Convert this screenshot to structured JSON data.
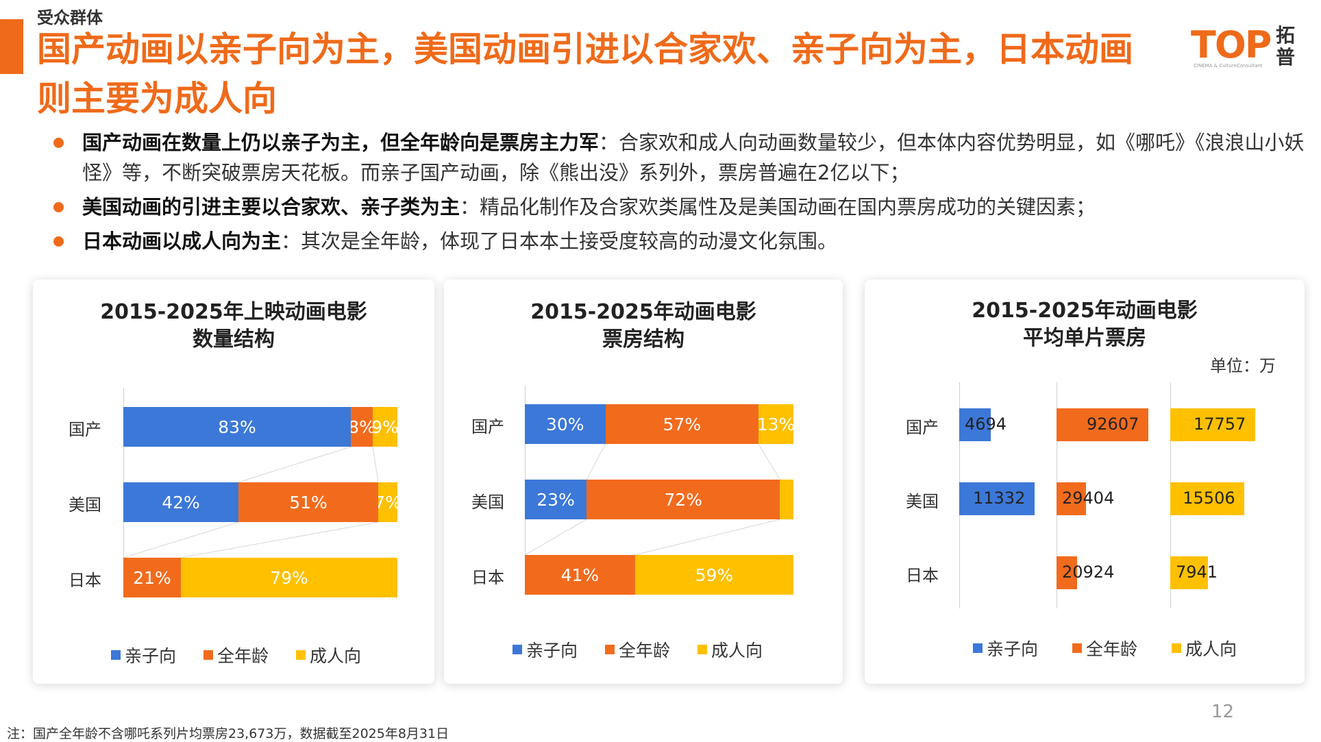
{
  "header": {
    "section_label": "受众群体",
    "title": "国产动画以亲子向为主，美国动画引进以合家欢、亲子向为主，日本动画则主要为成人向",
    "logo_text": "TOP",
    "logo_cn": "拓普",
    "logo_sub": "CINEMA & CultureConsultant"
  },
  "bullets": [
    {
      "strong": "国产动画在数量上仍以亲子为主，但全年龄向是票房主力军",
      "text": "：合家欢和成人向动画数量较少，但本体内容优势明显，如《哪吒》《浪浪山小妖怪》等，不断突破票房天花板。而亲子国产动画，除《熊出没》系列外，票房普遍在2亿以下；"
    },
    {
      "strong": "美国动画的引进主要以合家欢、亲子类为主",
      "text": "：精品化制作及合家欢类属性及是美国动画在国内票房成功的关键因素；"
    },
    {
      "strong": "日本动画以成人向为主",
      "text": "：其次是全年龄，体现了日本本土接受度较高的动漫文化氛围。"
    }
  ],
  "colors": {
    "accent": "#ef6a1a",
    "kids": "#3c78d8",
    "all_age": "#f26b1d",
    "adult": "#ffc000"
  },
  "legend": {
    "kids": "亲子向",
    "all_age": "全年龄",
    "adult": "成人向"
  },
  "chart_data": [
    {
      "type": "bar",
      "stacked": "percent",
      "title": "2015-2025年上映动画电影\n数量结构",
      "categories": [
        "国产",
        "美国",
        "日本"
      ],
      "series": [
        {
          "name": "亲子向",
          "values": [
            83,
            42,
            0
          ],
          "labels": [
            "83%",
            "42%",
            ""
          ]
        },
        {
          "name": "全年龄",
          "values": [
            8,
            51,
            21
          ],
          "labels": [
            "8%",
            "51%",
            "21%"
          ]
        },
        {
          "name": "成人向",
          "values": [
            9,
            7,
            79
          ],
          "labels": [
            "9%",
            "7%",
            "79%"
          ]
        }
      ],
      "legend_position": "bottom"
    },
    {
      "type": "bar",
      "stacked": "percent",
      "title": "2015-2025年动画电影\n票房结构",
      "categories": [
        "国产",
        "美国",
        "日本"
      ],
      "series": [
        {
          "name": "亲子向",
          "values": [
            30,
            23,
            0
          ],
          "labels": [
            "30%",
            "23%",
            ""
          ]
        },
        {
          "name": "全年龄",
          "values": [
            57,
            72,
            41
          ],
          "labels": [
            "57%",
            "72%",
            "41%"
          ]
        },
        {
          "name": "成人向",
          "values": [
            13,
            5,
            59
          ],
          "labels": [
            "13%",
            "",
            "59%"
          ]
        }
      ],
      "legend_position": "bottom"
    },
    {
      "type": "bar",
      "title": "2015-2025年动画电影\n平均单片票房",
      "unit_label": "单位：万",
      "categories": [
        "国产",
        "美国",
        "日本"
      ],
      "series": [
        {
          "name": "亲子向",
          "values": [
            4694,
            11332,
            null
          ],
          "labels": [
            "4694",
            "11332",
            ""
          ]
        },
        {
          "name": "全年龄",
          "values": [
            92607,
            29404,
            20924
          ],
          "labels": [
            "92607",
            "29404",
            "20924"
          ]
        },
        {
          "name": "成人向",
          "values": [
            17757,
            15506,
            7941
          ],
          "labels": [
            "17757",
            "15506",
            "7941"
          ]
        }
      ],
      "legend_position": "bottom"
    }
  ],
  "footnote": "注：国产全年龄不含哪吒系列片均票房23,673万，数据截至2025年8月31日",
  "page_number": "12"
}
